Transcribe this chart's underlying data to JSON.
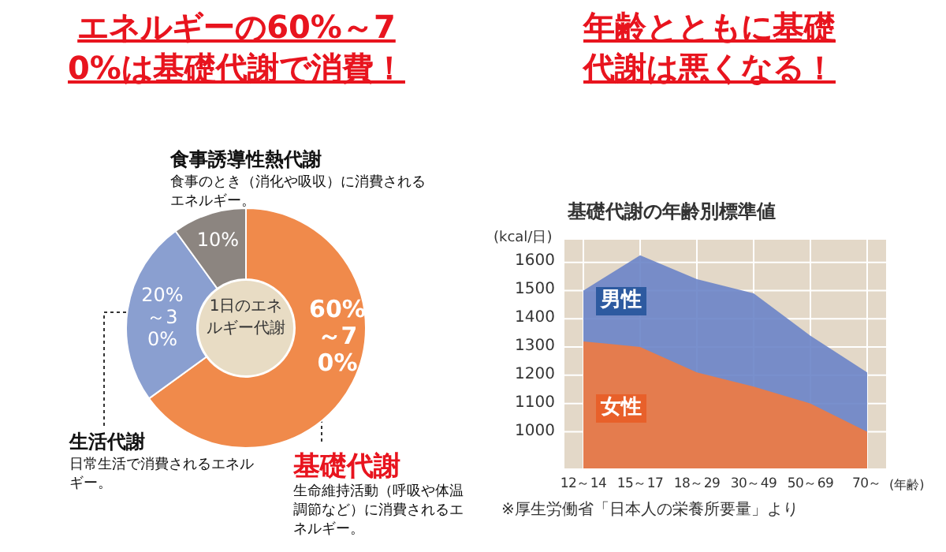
{
  "chart_data": [
    {
      "type": "donut",
      "title": "エネルギーの60%～70%は基礎代謝で消費！",
      "categories": [
        "基礎代謝",
        "生活代謝",
        "食事誘導性熱代謝"
      ],
      "values": [
        65,
        25,
        10
      ],
      "colors": [
        "#f08a4b",
        "#8a9fd0",
        "#8c8580"
      ],
      "value_labels": [
        null,
        null,
        "10%"
      ],
      "annotations": [
        "生命維持活動（呼吸や体温調節など）に消費されるエネルギー。",
        "日常生活で消費されるエネルギー。",
        "食事のとき（消化や吸収）に消費されるエネルギー。",
        "1日のエネルギー代謝",
        "60%～70%",
        "20%～30%"
      ]
    },
    {
      "type": "area",
      "title": "年齢とともに基礎代謝は悪くなる！",
      "subtitle": "基礎代謝の年齢別標準値",
      "ylabel": "(kcal/日)",
      "xlabel": "(年齢)",
      "categories": [
        "12～14",
        "15～17",
        "18～29",
        "30～49",
        "50～69",
        "70～"
      ],
      "series": [
        {
          "name": "男性",
          "color": "#6a84c8",
          "values": [
            1500,
            1625,
            1540,
            1490,
            1340,
            1210
          ]
        },
        {
          "name": "女性",
          "color": "#f07a40",
          "values": [
            1320,
            1300,
            1210,
            1160,
            1100,
            1000
          ]
        }
      ],
      "ylim": [
        870,
        1680
      ],
      "yticks": [
        1000,
        1100,
        1200,
        1300,
        1400,
        1500,
        1600
      ],
      "grid": true,
      "annotations": [
        "※厚生労働省「日本人の栄養所要量」より"
      ]
    }
  ]
}
